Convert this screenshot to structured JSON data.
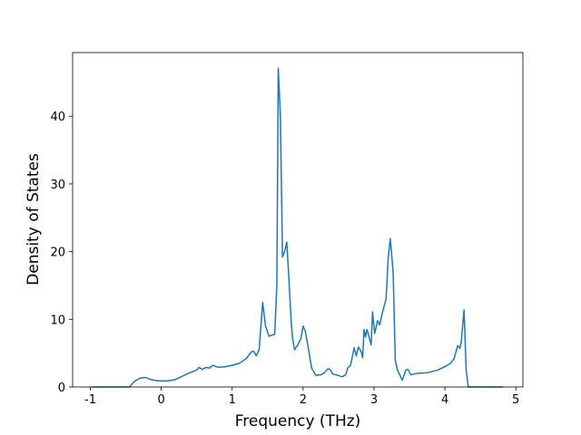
{
  "chart_data": {
    "type": "line",
    "x_label": "Frequency (THz)",
    "y_label": "Density of States",
    "xlim": [
      -1.25,
      5.1
    ],
    "ylim": [
      0,
      49.4
    ],
    "xticks": [
      -1,
      0,
      1,
      2,
      3,
      4,
      5
    ],
    "yticks": [
      0,
      10,
      20,
      30,
      40
    ],
    "x": [
      -0.98,
      -0.45,
      -0.38,
      -0.3,
      -0.22,
      -0.15,
      -0.05,
      0.1,
      0.2,
      0.3,
      0.4,
      0.5,
      0.53,
      0.58,
      0.63,
      0.68,
      0.73,
      0.8,
      0.9,
      1.0,
      1.1,
      1.2,
      1.27,
      1.3,
      1.34,
      1.38,
      1.43,
      1.47,
      1.52,
      1.6,
      1.63,
      1.65,
      1.68,
      1.71,
      1.74,
      1.77,
      1.8,
      1.83,
      1.85,
      1.88,
      1.93,
      1.97,
      2.0,
      2.03,
      2.07,
      2.12,
      2.18,
      2.25,
      2.3,
      2.35,
      2.38,
      2.42,
      2.5,
      2.55,
      2.6,
      2.63,
      2.67,
      2.72,
      2.75,
      2.78,
      2.82,
      2.84,
      2.86,
      2.88,
      2.9,
      2.93,
      2.96,
      2.98,
      3.01,
      3.05,
      3.08,
      3.12,
      3.17,
      3.2,
      3.23,
      3.27,
      3.3,
      3.33,
      3.4,
      3.45,
      3.48,
      3.52,
      3.6,
      3.75,
      3.9,
      4.0,
      4.08,
      4.13,
      4.18,
      4.21,
      4.23,
      4.27,
      4.3,
      4.33,
      4.82
    ],
    "series": [
      {
        "color": "#1f77b4",
        "values": [
          0,
          0,
          0.8,
          1.3,
          1.4,
          1.1,
          0.9,
          0.9,
          1.1,
          1.6,
          2.1,
          2.5,
          2.9,
          2.6,
          2.9,
          2.8,
          3.2,
          2.9,
          3.0,
          3.2,
          3.5,
          4.2,
          5.2,
          5.3,
          4.6,
          5.5,
          12.5,
          9.0,
          7.5,
          7.8,
          15.0,
          47.1,
          40.0,
          19.2,
          20.0,
          21.4,
          16.0,
          10.0,
          7.3,
          5.5,
          6.3,
          7.2,
          9.0,
          8.3,
          6.0,
          2.8,
          1.7,
          1.8,
          2.1,
          2.7,
          2.6,
          1.9,
          1.7,
          1.5,
          1.8,
          2.8,
          3.2,
          5.8,
          4.6,
          5.9,
          5.2,
          4.3,
          8.5,
          7.4,
          8.5,
          7.4,
          6.2,
          11.1,
          7.9,
          9.8,
          9.2,
          11.0,
          13.0,
          19.0,
          21.9,
          17.0,
          4.0,
          2.5,
          1.0,
          2.5,
          2.6,
          1.8,
          2.0,
          2.1,
          2.5,
          3.0,
          3.5,
          4.2,
          6.1,
          5.7,
          6.6,
          11.4,
          2.5,
          0,
          0
        ]
      }
    ]
  }
}
